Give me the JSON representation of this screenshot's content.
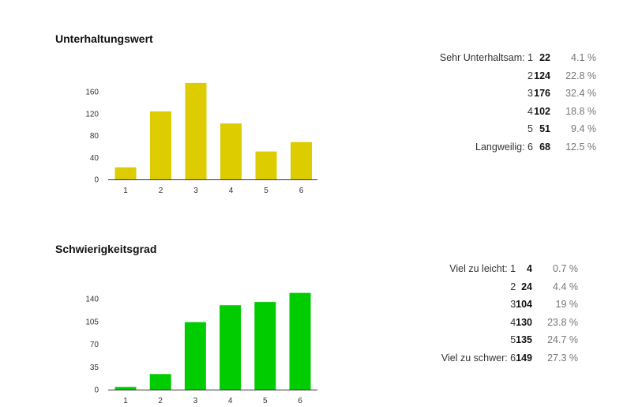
{
  "sections": [
    {
      "title": "Unterhaltungswert",
      "chart_data": {
        "type": "bar",
        "title": "Unterhaltungswert",
        "categories": [
          "1",
          "2",
          "3",
          "4",
          "5",
          "6"
        ],
        "values": [
          22,
          124,
          176,
          102,
          51,
          68
        ],
        "yticks": [
          "0",
          "40",
          "80",
          "120",
          "160"
        ],
        "ylim": [
          0,
          180
        ],
        "color": "#dccc00",
        "grid": false
      },
      "rows": [
        {
          "label": "Sehr Unterhaltsam: 1",
          "count": "22",
          "pct": "4.1 %"
        },
        {
          "label": "2",
          "count": "124",
          "pct": "22.8 %"
        },
        {
          "label": "3",
          "count": "176",
          "pct": "32.4 %"
        },
        {
          "label": "4",
          "count": "102",
          "pct": "18.8 %"
        },
        {
          "label": "5",
          "count": "51",
          "pct": "9.4 %"
        },
        {
          "label": "Langweilig: 6",
          "count": "68",
          "pct": "12.5 %"
        }
      ]
    },
    {
      "title": "Schwierigkeitsgrad",
      "chart_data": {
        "type": "bar",
        "title": "Schwierigkeitsgrad",
        "categories": [
          "1",
          "2",
          "3",
          "4",
          "5",
          "6"
        ],
        "values": [
          4,
          24,
          104,
          130,
          135,
          149
        ],
        "yticks": [
          "0",
          "35",
          "70",
          "105",
          "140"
        ],
        "ylim": [
          0,
          150
        ],
        "color": "#00cc00",
        "grid": false
      },
      "rows": [
        {
          "label": "Viel zu leicht: 1",
          "count": "4",
          "pct": "0.7 %"
        },
        {
          "label": "2",
          "count": "24",
          "pct": "4.4 %"
        },
        {
          "label": "3",
          "count": "104",
          "pct": "19 %"
        },
        {
          "label": "4",
          "count": "130",
          "pct": "23.8 %"
        },
        {
          "label": "5",
          "count": "135",
          "pct": "24.7 %"
        },
        {
          "label": "Viel zu schwer: 6",
          "count": "149",
          "pct": "27.3 %"
        }
      ]
    }
  ]
}
